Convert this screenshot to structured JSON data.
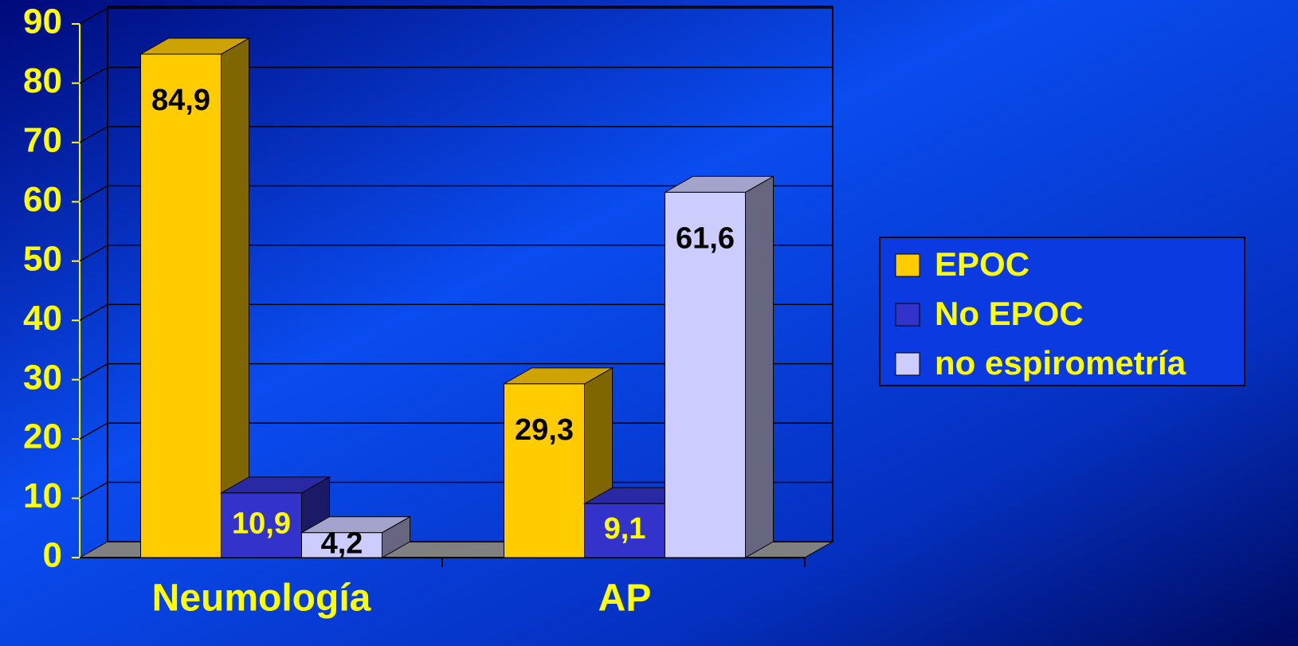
{
  "chart_data": {
    "type": "bar",
    "categories": [
      "Neumología",
      "AP"
    ],
    "series": [
      {
        "name": "EPOC",
        "color": "#ffcc00",
        "label_color": "#000000",
        "values": [
          84.9,
          29.3
        ],
        "value_labels": [
          "84,9",
          "29,3"
        ]
      },
      {
        "name": "No EPOC",
        "color": "#3333cc",
        "label_color": "#ffff00",
        "values": [
          10.9,
          9.1
        ],
        "value_labels": [
          "10,9",
          "9,1"
        ]
      },
      {
        "name": "no espirometría",
        "color": "#ccccff",
        "label_color": "#000000",
        "values": [
          4.2,
          61.6
        ],
        "value_labels": [
          "4,2",
          "61,6"
        ]
      }
    ],
    "ylim": [
      0,
      90
    ],
    "yticks": [
      0,
      10,
      20,
      30,
      40,
      50,
      60,
      70,
      80,
      90
    ],
    "grid": true,
    "legend": "right"
  }
}
